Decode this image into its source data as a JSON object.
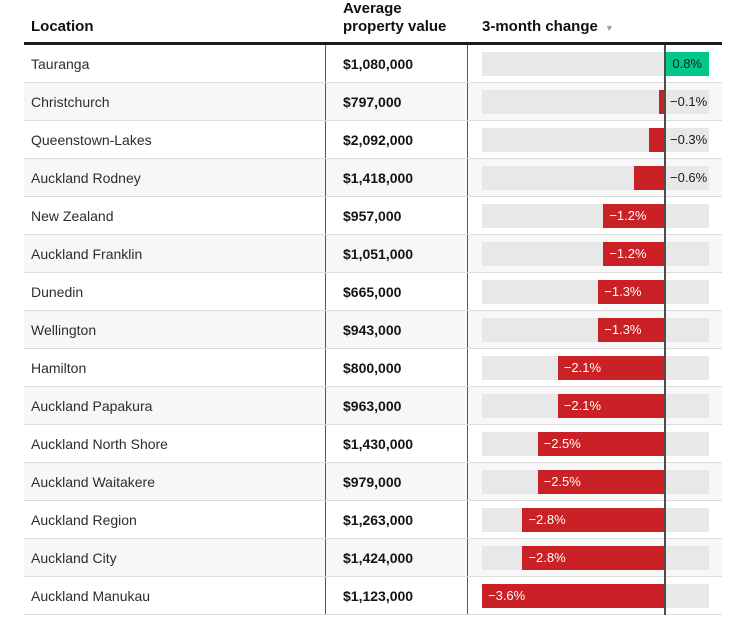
{
  "header": {
    "columns": [
      {
        "label": "Location"
      },
      {
        "label": "Average property value"
      },
      {
        "label": "3-month change",
        "sort_indicator": "▼"
      }
    ]
  },
  "rows": [
    {
      "location": "Tauranga",
      "value": "$1,080,000",
      "change": 0.8,
      "change_label": "0.8%"
    },
    {
      "location": "Christchurch",
      "value": "$797,000",
      "change": -0.1,
      "change_label": "−0.1%"
    },
    {
      "location": "Queenstown-Lakes",
      "value": "$2,092,000",
      "change": -0.3,
      "change_label": "−0.3%"
    },
    {
      "location": "Auckland Rodney",
      "value": "$1,418,000",
      "change": -0.6,
      "change_label": "−0.6%"
    },
    {
      "location": "New Zealand",
      "value": "$957,000",
      "change": -1.2,
      "change_label": "−1.2%"
    },
    {
      "location": "Auckland Franklin",
      "value": "$1,051,000",
      "change": -1.2,
      "change_label": "−1.2%"
    },
    {
      "location": "Dunedin",
      "value": "$665,000",
      "change": -1.3,
      "change_label": "−1.3%"
    },
    {
      "location": "Wellington",
      "value": "$943,000",
      "change": -1.3,
      "change_label": "−1.3%"
    },
    {
      "location": "Hamilton",
      "value": "$800,000",
      "change": -2.1,
      "change_label": "−2.1%"
    },
    {
      "location": "Auckland Papakura",
      "value": "$963,000",
      "change": -2.1,
      "change_label": "−2.1%"
    },
    {
      "location": "Auckland North Shore",
      "value": "$1,430,000",
      "change": -2.5,
      "change_label": "−2.5%"
    },
    {
      "location": "Auckland Waitakere",
      "value": "$979,000",
      "change": -2.5,
      "change_label": "−2.5%"
    },
    {
      "location": "Auckland Region",
      "value": "$1,263,000",
      "change": -2.8,
      "change_label": "−2.8%"
    },
    {
      "location": "Auckland City",
      "value": "$1,424,000",
      "change": -2.8,
      "change_label": "−2.8%"
    },
    {
      "location": "Auckland Manukau",
      "value": "$1,123,000",
      "change": -3.6,
      "change_label": "−3.6%"
    }
  ],
  "chart_data": {
    "type": "bar",
    "orientation": "horizontal",
    "title": "",
    "categories": [
      "Tauranga",
      "Christchurch",
      "Queenstown-Lakes",
      "Auckland Rodney",
      "New Zealand",
      "Auckland Franklin",
      "Dunedin",
      "Wellington",
      "Hamilton",
      "Auckland Papakura",
      "Auckland North Shore",
      "Auckland Waitakere",
      "Auckland Region",
      "Auckland City",
      "Auckland Manukau"
    ],
    "series": [
      {
        "name": "Average property value (NZD)",
        "values": [
          1080000,
          797000,
          2092000,
          1418000,
          957000,
          1051000,
          665000,
          943000,
          800000,
          963000,
          1430000,
          979000,
          1263000,
          1424000,
          1123000
        ]
      },
      {
        "name": "3-month change (%)",
        "values": [
          0.8,
          -0.1,
          -0.3,
          -0.6,
          -1.2,
          -1.2,
          -1.3,
          -1.3,
          -2.1,
          -2.1,
          -2.5,
          -2.5,
          -2.8,
          -2.8,
          -3.6
        ]
      }
    ],
    "xlim": [
      -3.6,
      0.8
    ],
    "sorted_by": "3-month change, descending",
    "grid": "off",
    "legend": "none",
    "colors": {
      "positive_bar": "#00c88c",
      "negative_bar": "#c92125",
      "bar_track": "#e8e8e8",
      "zero_axis": "#4d4d4d",
      "label_inside_negative": "#ffffff",
      "label_dark": "#1a1a1a"
    }
  }
}
